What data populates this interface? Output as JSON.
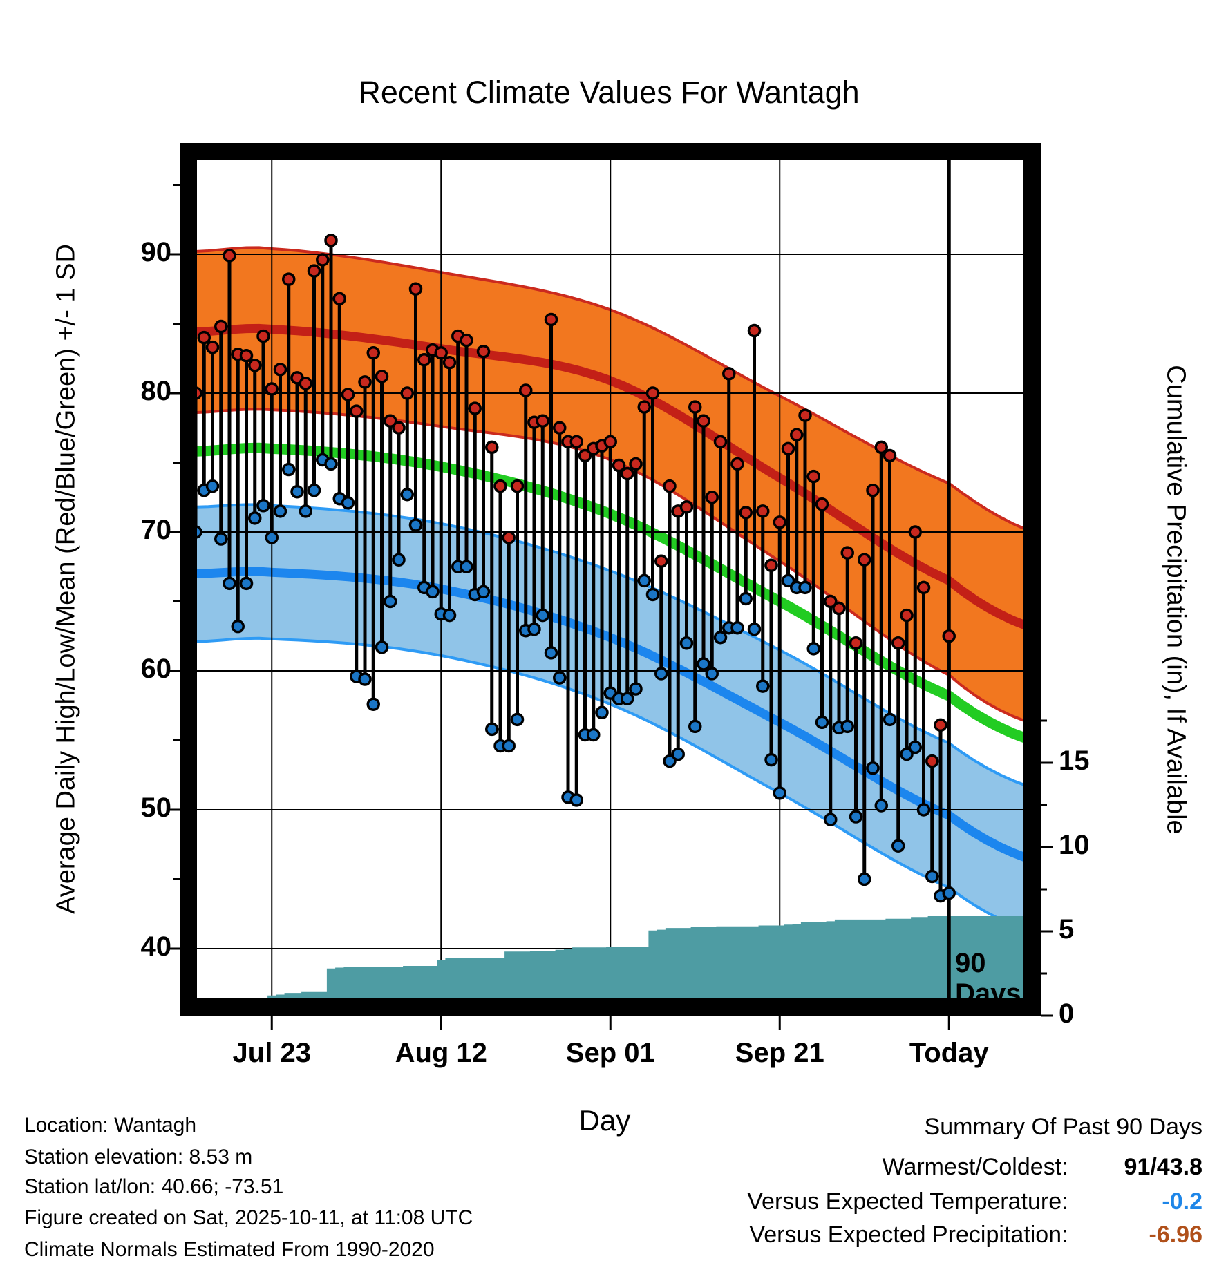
{
  "title": "Recent Climate Values For Wantagh",
  "axes": {
    "left_label": "Average Daily High/Low/Mean (Red/Blue/Green) +/- 1 SD",
    "right_label": "Cumulative Precipitation (in), If Available",
    "x_label": "Day",
    "left_ticks": [
      90,
      80,
      70,
      60,
      50,
      40
    ],
    "left_minor_ticks": [
      95,
      85,
      75,
      65,
      55,
      45
    ],
    "right_ticks": [
      15,
      10,
      5,
      0
    ],
    "right_minor_ticks": [
      17.5,
      12.5,
      7.5,
      2.5
    ],
    "x_ticks": [
      {
        "label": "Jul 23",
        "day": 9
      },
      {
        "label": "Aug 12",
        "day": 29
      },
      {
        "label": "Sep 01",
        "day": 49
      },
      {
        "label": "Sep 21",
        "day": 69
      },
      {
        "label": "Today",
        "day": 89
      }
    ]
  },
  "annotations": {
    "days_line_1": "90",
    "days_line_2": "Days"
  },
  "footer_left": [
    "Location: Wantagh",
    "Station elevation: 8.53 m",
    "Station lat/lon: 40.66; -73.51",
    "Figure created on Sat, 2025-10-11, at 11:08 UTC",
    "Climate Normals Estimated From 1990-2020"
  ],
  "summary": {
    "title": "Summary Of Past 90 Days",
    "rows": [
      {
        "label": "Warmest/Coldest:",
        "value": "91/43.8",
        "color": "#000000"
      },
      {
        "label": "Versus Expected Temperature:",
        "value": "-0.2",
        "color": "#1e86e8"
      },
      {
        "label": "Versus Expected Precipitation:",
        "value": "-6.96",
        "color": "#b0501a"
      }
    ]
  },
  "colors": {
    "high_band_fill": "#f2771f",
    "high_band_edge": "#cb2a1e",
    "high_mean_line": "#c32017",
    "mean_line": "#22cc22",
    "low_band_fill": "#90c4e8",
    "low_band_edge": "#2e9bf5",
    "low_mean_line": "#1c86ee",
    "precip_fill": "#4e9ca3",
    "stem": "#000000",
    "high_dot": "#c8281e",
    "low_dot": "#1b76c6",
    "grid": "#000000"
  },
  "chart_data": {
    "type": "line",
    "title": "Recent Climate Values For Wantagh",
    "xlabel": "Day",
    "ylabel_left": "Average Daily High/Low/Mean (Red/Blue/Green) +/- 1 SD",
    "ylabel_right": "Cumulative Precipitation (in), If Available",
    "x_is_day_index": "0 = 90 days ago (Jul 14), 89 = Today (Oct 11)",
    "ylim_temp": [
      36.5,
      97.0
    ],
    "ylim_precip": [
      0,
      24.5
    ],
    "today_day": 89,
    "warmest": 91.0,
    "coldest": 43.8,
    "daily_high": [
      80.0,
      84.0,
      83.3,
      84.8,
      89.9,
      82.8,
      82.7,
      82.0,
      84.1,
      80.3,
      81.7,
      88.2,
      81.1,
      80.7,
      88.8,
      89.6,
      91.0,
      86.8,
      79.9,
      78.7,
      80.8,
      82.9,
      81.2,
      78.0,
      77.5,
      80.0,
      87.5,
      82.4,
      83.1,
      82.9,
      82.2,
      84.1,
      83.8,
      78.9,
      83.0,
      76.1,
      73.3,
      69.6,
      73.3,
      80.2,
      77.9,
      78.0,
      85.3,
      77.5,
      76.5,
      76.5,
      75.5,
      76.0,
      76.2,
      76.5,
      74.8,
      74.2,
      74.9,
      79.0,
      80.0,
      67.9,
      73.3,
      71.5,
      71.8,
      79.0,
      78.0,
      72.5,
      76.5,
      81.4,
      74.9,
      71.4,
      84.5,
      71.5,
      67.6,
      70.7,
      76.0,
      77.0,
      78.4,
      74.0,
      72.0,
      65.0,
      64.5,
      68.5,
      62.0,
      68.0,
      73.0,
      76.1,
      75.5,
      62.0,
      64.0,
      70.0,
      66.0,
      53.5,
      56.1,
      62.5
    ],
    "daily_low": [
      70.0,
      73.0,
      73.3,
      69.5,
      66.3,
      63.2,
      66.3,
      71.0,
      71.9,
      69.6,
      71.5,
      74.5,
      72.9,
      71.5,
      73.0,
      75.2,
      74.9,
      72.4,
      72.1,
      59.6,
      59.4,
      57.6,
      61.7,
      65.0,
      68.0,
      72.7,
      70.5,
      66.0,
      65.7,
      64.1,
      64.0,
      67.5,
      67.5,
      65.5,
      65.7,
      55.8,
      54.6,
      54.6,
      56.5,
      62.9,
      63.0,
      64.0,
      61.3,
      59.5,
      50.9,
      50.7,
      55.4,
      55.4,
      57.0,
      58.4,
      58.0,
      58.0,
      58.7,
      66.5,
      65.5,
      59.8,
      53.5,
      54.0,
      62.0,
      56.0,
      60.5,
      59.8,
      62.4,
      63.1,
      63.1,
      65.2,
      63.0,
      58.9,
      53.6,
      51.2,
      66.5,
      66.0,
      66.0,
      61.6,
      56.3,
      49.3,
      55.9,
      56.0,
      49.5,
      45.0,
      53.0,
      50.3,
      56.5,
      47.4,
      54.0,
      54.5,
      50.0,
      45.2,
      43.8,
      44.0
    ],
    "normals_anchor_days": [
      -2,
      0,
      9,
      29,
      49,
      69,
      89,
      100
    ],
    "normals": {
      "high_plus_sd": [
        90.1,
        90.2,
        90.4,
        88.7,
        86.0,
        79.8,
        73.5,
        69.8
      ],
      "high_mean": [
        84.3,
        84.4,
        84.6,
        83.2,
        80.9,
        73.9,
        66.5,
        62.9
      ],
      "high_minus_sd": [
        78.5,
        78.6,
        78.8,
        77.6,
        75.2,
        67.9,
        59.7,
        56.0
      ],
      "mean": [
        75.7,
        75.8,
        76.0,
        74.7,
        71.3,
        65.0,
        58.2,
        54.8
      ],
      "low_plus_sd": [
        71.7,
        71.8,
        71.9,
        70.6,
        67.2,
        61.5,
        54.8,
        51.4
      ],
      "low_mean": [
        66.9,
        67.0,
        67.1,
        65.9,
        62.4,
        56.3,
        49.6,
        46.2
      ],
      "low_minus_sd": [
        62.0,
        62.1,
        62.3,
        61.1,
        57.6,
        51.2,
        44.4,
        41.0
      ]
    },
    "precip_cumulative": [
      0.3,
      0.45,
      0.6,
      0.6,
      0.65,
      0.9,
      0.95,
      1.0,
      1.0,
      1.2,
      1.25,
      1.35,
      1.35,
      1.4,
      1.4,
      1.4,
      2.8,
      2.85,
      2.9,
      2.9,
      2.9,
      2.9,
      2.9,
      2.9,
      2.9,
      2.95,
      2.95,
      2.95,
      2.95,
      3.3,
      3.4,
      3.4,
      3.4,
      3.4,
      3.4,
      3.4,
      3.4,
      3.8,
      3.8,
      3.8,
      3.85,
      3.85,
      3.85,
      3.9,
      3.95,
      4.05,
      4.05,
      4.05,
      4.05,
      4.1,
      4.1,
      4.1,
      4.1,
      4.1,
      5.05,
      5.1,
      5.2,
      5.2,
      5.2,
      5.25,
      5.25,
      5.25,
      5.3,
      5.3,
      5.3,
      5.3,
      5.3,
      5.35,
      5.35,
      5.35,
      5.4,
      5.45,
      5.55,
      5.55,
      5.55,
      5.6,
      5.7,
      5.7,
      5.7,
      5.7,
      5.7,
      5.7,
      5.75,
      5.75,
      5.75,
      5.85,
      5.85,
      5.9,
      5.9,
      5.9
    ],
    "legend_position": "none",
    "grid": true
  }
}
